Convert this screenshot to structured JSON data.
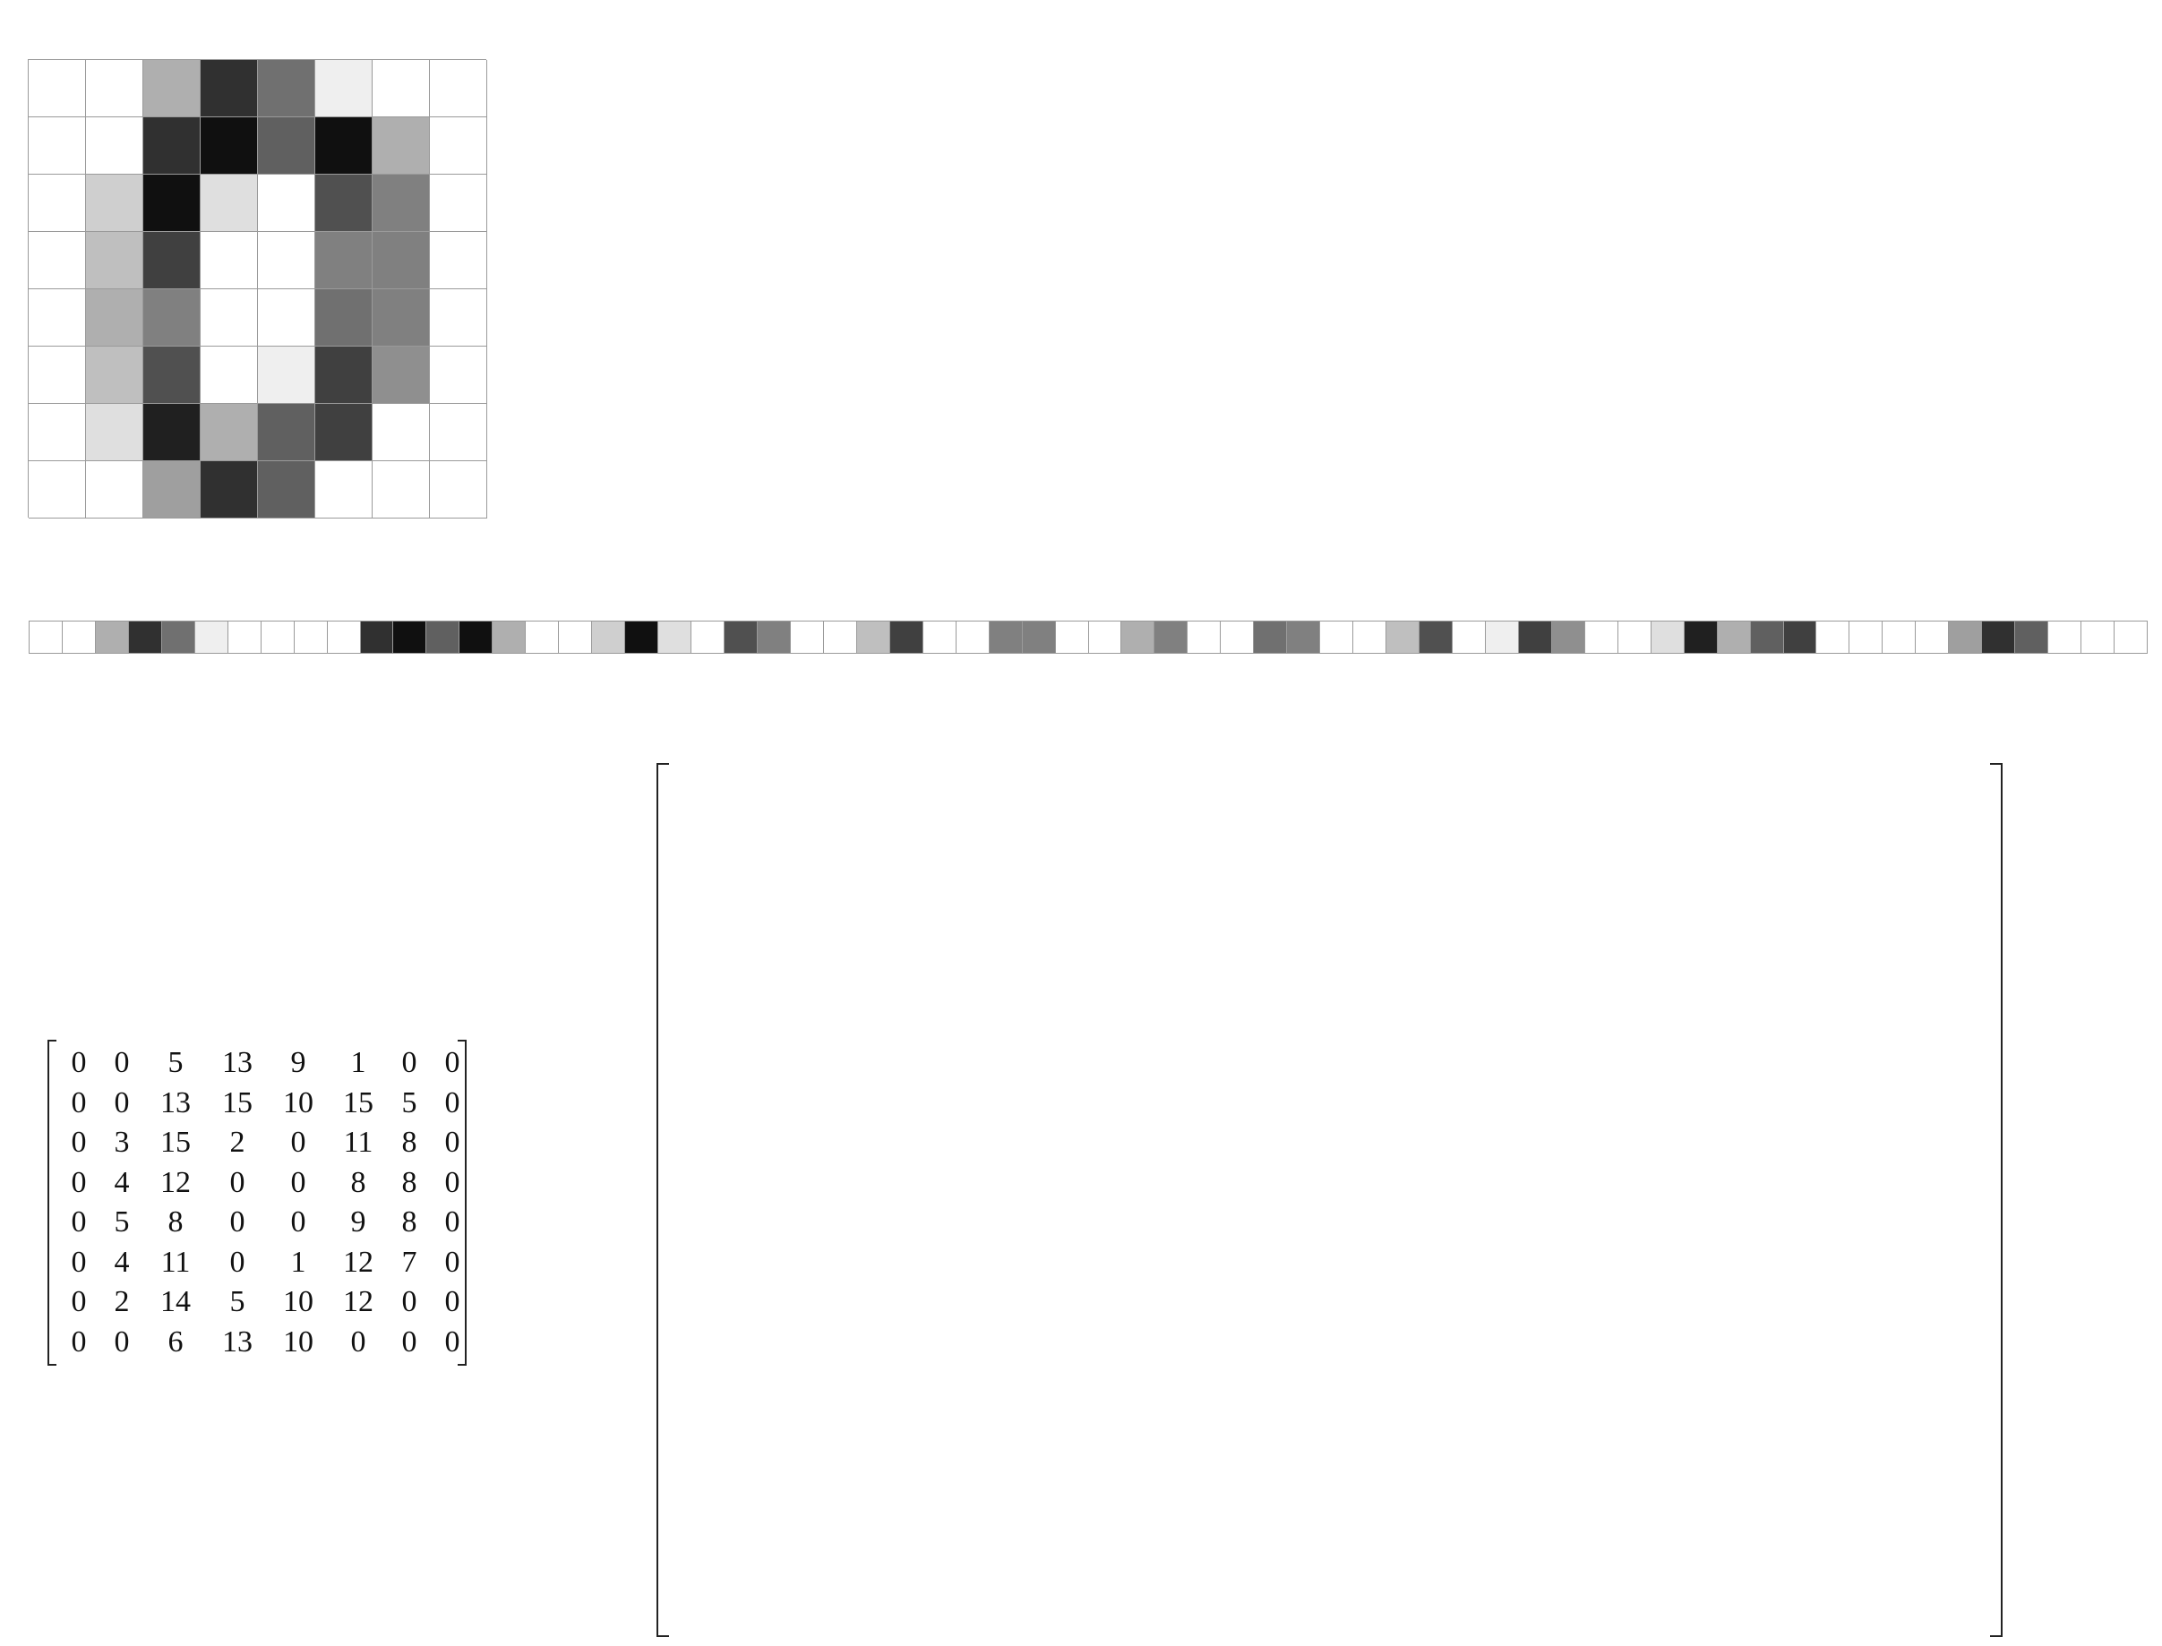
{
  "digit_matrix": [
    [
      0,
      0,
      5,
      13,
      9,
      1,
      0,
      0
    ],
    [
      0,
      0,
      13,
      15,
      10,
      15,
      5,
      0
    ],
    [
      0,
      3,
      15,
      2,
      0,
      11,
      8,
      0
    ],
    [
      0,
      4,
      12,
      0,
      0,
      8,
      8,
      0
    ],
    [
      0,
      5,
      8,
      0,
      0,
      9,
      8,
      0
    ],
    [
      0,
      4,
      11,
      0,
      1,
      12,
      7,
      0
    ],
    [
      0,
      2,
      14,
      5,
      10,
      12,
      0,
      0
    ],
    [
      0,
      0,
      6,
      13,
      10,
      0,
      0,
      0
    ]
  ],
  "max_intensity": 16
}
